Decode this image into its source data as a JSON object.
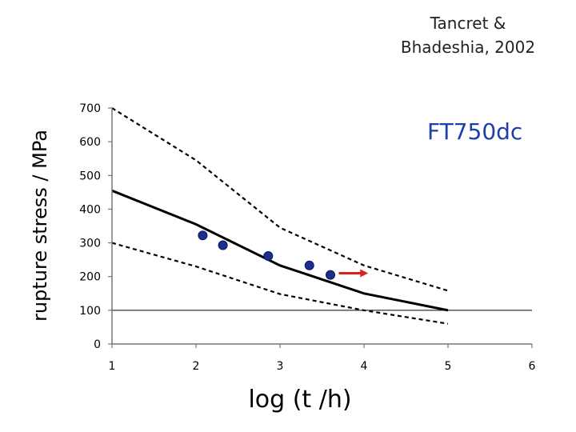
{
  "attribution": [
    "Tancret &",
    "Bhadeshia, 2002"
  ],
  "chart_data": {
    "type": "line",
    "title": "",
    "xlabel": "log (t /h)",
    "ylabel": "rupture stress / MPa",
    "xlim": [
      1,
      6
    ],
    "ylim": [
      0,
      700
    ],
    "xticks": [
      1,
      2,
      3,
      4,
      5,
      6
    ],
    "yticks": [
      0,
      100,
      200,
      300,
      400,
      500,
      600,
      700
    ],
    "annotation": "FT750dc",
    "series": [
      {
        "x": [
          1.0,
          2.0,
          3.0,
          4.0,
          5.0
        ],
        "values": [
          455,
          355,
          233,
          150,
          100
        ],
        "style": "solid"
      },
      {
        "x": [
          1.0,
          2.0,
          3.0,
          4.0,
          5.0
        ],
        "values": [
          700,
          545,
          345,
          233,
          158
        ],
        "style": "dashed"
      },
      {
        "x": [
          1.0,
          2.0,
          3.0,
          4.0,
          5.0
        ],
        "values": [
          300,
          230,
          148,
          100,
          60
        ],
        "style": "dashed"
      },
      {
        "x": [
          2.08,
          2.32,
          2.86,
          3.35,
          3.6
        ],
        "values": [
          322,
          293,
          261,
          233,
          205
        ],
        "style": "points"
      }
    ],
    "arrow": {
      "from": [
        3.7,
        210
      ],
      "to": [
        4.05,
        210
      ]
    },
    "reference_line": 100,
    "colors": {
      "line": "#000000",
      "points": "#1c2f8f",
      "arrow": "#e02020",
      "label": "#1f3fa8"
    }
  }
}
